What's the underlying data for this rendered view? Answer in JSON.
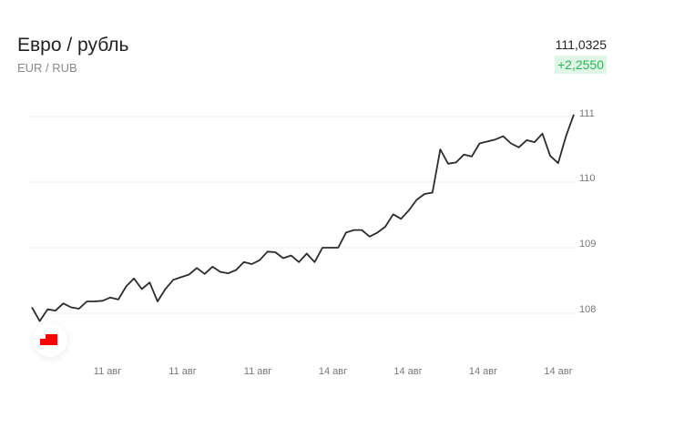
{
  "header": {
    "title": "Евро / рубль",
    "subtitle": "EUR / RUB",
    "price": "111,0325",
    "change": "+2,2550"
  },
  "colors": {
    "line": "#2b2b2b",
    "grid": "#eeeeee",
    "positive": "#2db35a",
    "positive_bg": "#dff5e6",
    "logo": "#ff0000"
  },
  "logo_icon": "red-bank-logo-icon",
  "chart_data": {
    "type": "line",
    "title": "",
    "xlabel": "",
    "ylabel": "",
    "ylim": [
      107.6,
      111.2
    ],
    "y_ticks": [
      111,
      110,
      109,
      108
    ],
    "y_tick_labels": [
      "111",
      "110",
      "109",
      "108"
    ],
    "x_tick_labels": [
      "11 авг",
      "11 авг",
      "11 авг",
      "14 авг",
      "14 авг",
      "14 авг",
      "14 авг"
    ],
    "grid": true,
    "y_axis_position": "right",
    "values": [
      108.09,
      107.88,
      108.06,
      108.04,
      108.15,
      108.09,
      108.07,
      108.18,
      108.18,
      108.19,
      108.24,
      108.21,
      108.41,
      108.53,
      108.37,
      108.47,
      108.18,
      108.37,
      108.51,
      108.55,
      108.59,
      108.69,
      108.6,
      108.71,
      108.63,
      108.61,
      108.66,
      108.78,
      108.75,
      108.81,
      108.94,
      108.93,
      108.84,
      108.88,
      108.78,
      108.91,
      108.78,
      109.0,
      109.0,
      109.0,
      109.23,
      109.27,
      109.27,
      109.17,
      109.23,
      109.32,
      109.51,
      109.44,
      109.57,
      109.73,
      109.82,
      109.84,
      110.5,
      110.28,
      110.3,
      110.42,
      110.39,
      110.59,
      110.62,
      110.65,
      110.7,
      110.59,
      110.53,
      110.64,
      110.61,
      110.74,
      110.4,
      110.29,
      110.7,
      111.03
    ]
  }
}
